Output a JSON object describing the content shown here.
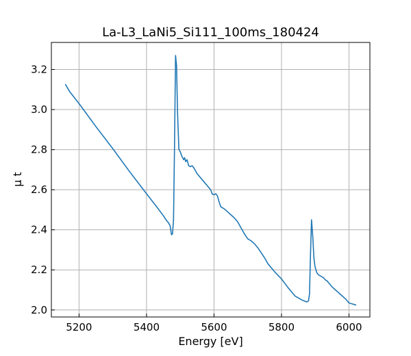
{
  "chart_data": {
    "type": "line",
    "title": "La-L3_LaNi5_Si111_100ms_180424",
    "xlabel": "Energy [eV]",
    "ylabel": "μ t",
    "xlim": [
      5118,
      6062
    ],
    "ylim": [
      1.965,
      3.335
    ],
    "xticks": [
      5200,
      5400,
      5600,
      5800,
      6000
    ],
    "yticks": [
      2.0,
      2.2,
      2.4,
      2.6,
      2.8,
      3.0,
      3.2
    ],
    "xtick_labels": [
      "5200",
      "5400",
      "5600",
      "5800",
      "6000"
    ],
    "ytick_labels": [
      "2.0",
      "2.2",
      "2.4",
      "2.6",
      "2.8",
      "3.0",
      "3.2"
    ],
    "grid": true,
    "line_color": "#1f77b4",
    "series": [
      {
        "x": [
          5160,
          5172,
          5200,
          5250,
          5300,
          5350,
          5400,
          5430,
          5450,
          5460,
          5465,
          5470,
          5474,
          5477,
          5480,
          5483,
          5486,
          5489,
          5492,
          5496,
          5500,
          5504,
          5507,
          5510,
          5513,
          5516,
          5520,
          5525,
          5530,
          5535,
          5540,
          5545,
          5550,
          5560,
          5570,
          5580,
          5590,
          5595,
          5600,
          5605,
          5610,
          5615,
          5620,
          5630,
          5640,
          5650,
          5660,
          5670,
          5680,
          5690,
          5700,
          5710,
          5720,
          5730,
          5740,
          5750,
          5760,
          5780,
          5800,
          5820,
          5840,
          5860,
          5875,
          5880,
          5883,
          5886,
          5889,
          5893,
          5896,
          5899,
          5902,
          5905,
          5910,
          5915,
          5920,
          5925,
          5930,
          5935,
          5940,
          5950,
          5960,
          5970,
          5980,
          5990,
          6000,
          6010,
          6020
        ],
        "y": [
          3.125,
          3.09,
          3.03,
          2.915,
          2.805,
          2.69,
          2.58,
          2.515,
          2.47,
          2.445,
          2.435,
          2.42,
          2.375,
          2.38,
          2.45,
          2.82,
          3.27,
          3.22,
          2.98,
          2.8,
          2.79,
          2.77,
          2.76,
          2.75,
          2.76,
          2.74,
          2.75,
          2.72,
          2.715,
          2.72,
          2.71,
          2.695,
          2.68,
          2.66,
          2.64,
          2.62,
          2.6,
          2.578,
          2.575,
          2.58,
          2.57,
          2.54,
          2.515,
          2.505,
          2.49,
          2.475,
          2.46,
          2.44,
          2.41,
          2.38,
          2.355,
          2.345,
          2.33,
          2.31,
          2.285,
          2.26,
          2.23,
          2.19,
          2.155,
          2.11,
          2.07,
          2.05,
          2.04,
          2.045,
          2.08,
          2.28,
          2.45,
          2.36,
          2.26,
          2.22,
          2.2,
          2.185,
          2.175,
          2.17,
          2.165,
          2.16,
          2.15,
          2.145,
          2.135,
          2.115,
          2.1,
          2.085,
          2.07,
          2.055,
          2.035,
          2.03,
          2.025
        ]
      }
    ]
  }
}
